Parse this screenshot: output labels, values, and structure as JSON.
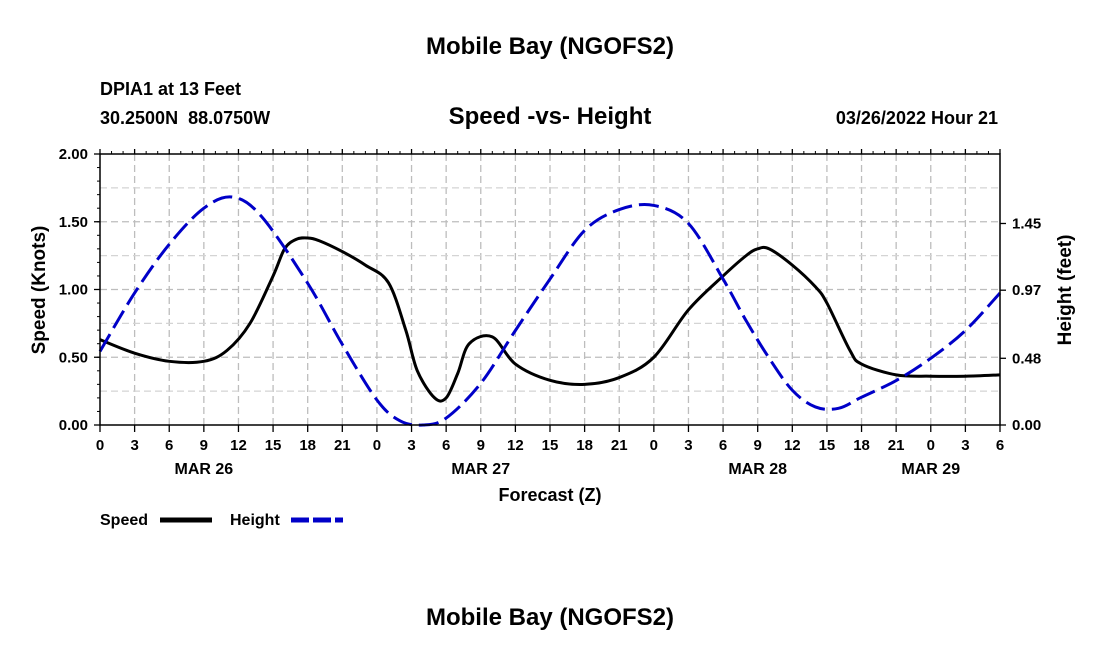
{
  "chart_data": {
    "type": "line",
    "title": "Mobile Bay (NGOFS2)",
    "footer_title": "Mobile Bay (NGOFS2)",
    "station": "DPIA1 at 13 Feet",
    "coords": "30.2500N  88.0750W",
    "subtitle": "Speed -vs- Height",
    "timestamp": "03/26/2022 Hour 21",
    "xlabel": "Forecast (Z)",
    "ylabel": "Speed (Knots)",
    "y2label": "Height (feet)",
    "xlim": [
      0,
      78
    ],
    "ylim": [
      0,
      2.0
    ],
    "y2lim": [
      -0.0,
      1.95
    ],
    "x_ticks": [
      0,
      3,
      6,
      9,
      12,
      15,
      18,
      21,
      24,
      27,
      30,
      33,
      36,
      39,
      42,
      45,
      48,
      51,
      54,
      57,
      60,
      63,
      66,
      69,
      72,
      75,
      78
    ],
    "x_tick_labels": [
      "0",
      "3",
      "6",
      "9",
      "12",
      "15",
      "18",
      "21",
      "0",
      "3",
      "6",
      "9",
      "12",
      "15",
      "18",
      "21",
      "0",
      "3",
      "6",
      "9",
      "12",
      "15",
      "18",
      "21",
      "0",
      "3",
      "6"
    ],
    "y_ticks": [
      0,
      0.5,
      1.0,
      1.5,
      2.0
    ],
    "y_tick_labels": [
      "0.00",
      "0.50",
      "1.00",
      "1.50",
      "2.00"
    ],
    "y2_ticks": [
      0,
      0.48,
      0.97,
      1.45
    ],
    "y2_tick_labels": [
      "0.00",
      "0.48",
      "0.97",
      "1.45"
    ],
    "date_labels": [
      {
        "x": 9,
        "label": "MAR 26"
      },
      {
        "x": 33,
        "label": "MAR 27"
      },
      {
        "x": 57,
        "label": "MAR 28"
      },
      {
        "x": 72,
        "label": "MAR 29"
      }
    ],
    "series": [
      {
        "name": "Speed",
        "color": "#000000",
        "axis": "left",
        "x": [
          0,
          3,
          6,
          9,
          11,
          13,
          15,
          16,
          17,
          18,
          19,
          21,
          23,
          25,
          26.5,
          27.5,
          29,
          30,
          31,
          32,
          34,
          36,
          39,
          42,
          45,
          48,
          51,
          54,
          56,
          57,
          58,
          60,
          62,
          63,
          65,
          66,
          69,
          72,
          75,
          78
        ],
        "y": [
          0.63,
          0.53,
          0.47,
          0.47,
          0.55,
          0.75,
          1.1,
          1.3,
          1.37,
          1.38,
          1.36,
          1.28,
          1.18,
          1.05,
          0.7,
          0.4,
          0.2,
          0.2,
          0.38,
          0.6,
          0.65,
          0.45,
          0.33,
          0.3,
          0.35,
          0.5,
          0.85,
          1.1,
          1.25,
          1.3,
          1.3,
          1.18,
          1.02,
          0.9,
          0.55,
          0.45,
          0.37,
          0.36,
          0.36,
          0.37
        ]
      },
      {
        "name": "Height",
        "color": "#0000c8",
        "axis": "right",
        "x": [
          0,
          3,
          6,
          9,
          11.5,
          14,
          18,
          21,
          24,
          26,
          28,
          30,
          33,
          36,
          39,
          42,
          45,
          48,
          51,
          54,
          56,
          58,
          60,
          62,
          64,
          66,
          69,
          72,
          75,
          78
        ],
        "y": [
          0.53,
          0.95,
          1.3,
          1.56,
          1.64,
          1.5,
          1.02,
          0.58,
          0.18,
          0.03,
          0.0,
          0.05,
          0.3,
          0.68,
          1.05,
          1.4,
          1.55,
          1.58,
          1.45,
          1.05,
          0.75,
          0.48,
          0.25,
          0.13,
          0.12,
          0.2,
          0.32,
          0.48,
          0.68,
          0.95
        ]
      }
    ],
    "legend": [
      {
        "label": "Speed",
        "color": "#000000",
        "dashed": false
      },
      {
        "label": "Height",
        "color": "#0000c8",
        "dashed": true
      }
    ],
    "legend_position": "bottom-left",
    "grid": true
  }
}
